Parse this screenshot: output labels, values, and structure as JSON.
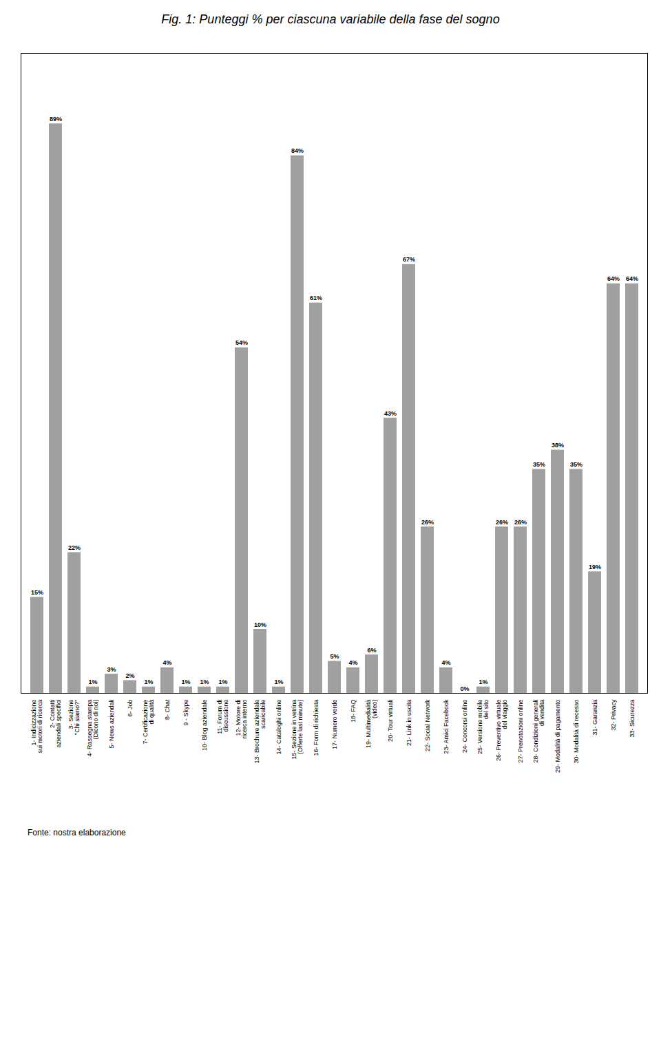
{
  "chart_data": {
    "type": "bar",
    "title": "Fig. 1: Punteggi % per ciascuna variabile della fase del sogno",
    "categories": [
      "1- Indicizzazione\nsui motori di ricerca",
      "2- Contatti\naziendali specifici",
      "3- Sezione\n\"Chi siamo?\"",
      "4- Rassegna stampa\n(Dicono di noi)",
      "5- News aziendali",
      "6- Job",
      "7- Certificazione\ndi qualità",
      "8- Chat",
      "9 - Skype",
      "10- Blog aziendale",
      "11- Forum di\ndiscussione",
      "12- Motore di\nricerca interno",
      "13- Brochure aziendale\nscaricabile",
      "14- Cataloghi online",
      "15- Sezione in vetrina\n(Offerte last minute)",
      "16- Form di richiesta",
      "17- Numero verde",
      "18- FAQ",
      "19- Multimedialità\n(video)",
      "20- Tour virtuali",
      "21- Link in uscita",
      "22- Social Network",
      "23- Amici Facebook",
      "24- Concorsi online",
      "25- Versione mobile\ndel sito",
      "26- Preventivo virtuale\ndel viaggio",
      "27- Prenotazioni online",
      "28- Condizioni generali\ndi vendita",
      "29- Modalità di pagamento",
      "30- Modalità di recesso",
      "31- Garanzia",
      "32- Privacy",
      "33- Sicurezza"
    ],
    "values": [
      15,
      89,
      22,
      1,
      3,
      2,
      1,
      4,
      1,
      1,
      1,
      54,
      10,
      1,
      84,
      61,
      5,
      4,
      6,
      43,
      67,
      26,
      4,
      0,
      1,
      26,
      26,
      35,
      38,
      35,
      19,
      64,
      64
    ],
    "value_labels": [
      "15%",
      "89%",
      "22%",
      "1%",
      "3%",
      "2%",
      "1%",
      "4%",
      "1%",
      "1%",
      "1%",
      "54%",
      "10%",
      "1%",
      "84%",
      "61%",
      "5%",
      "4%",
      "6%",
      "43%",
      "67%",
      "26%",
      "4%",
      "0%",
      "1%",
      "26%",
      "26%",
      "35%",
      "38%",
      "35%",
      "19%",
      "64%",
      "64%"
    ],
    "color": "#a0a0a0",
    "ylim": [
      0,
      100
    ],
    "grid": false,
    "data_labels": true,
    "tick_labels": "x",
    "annotations": [
      "Fonte: nostra elaborazione"
    ]
  }
}
